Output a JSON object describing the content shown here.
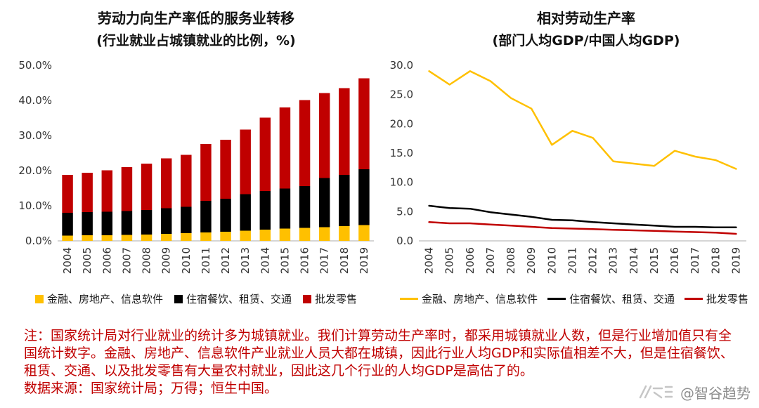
{
  "figure": {
    "background": "#ffffff"
  },
  "colors": {
    "series_finance": "#FFC000",
    "series_accommodation": "#000000",
    "series_wholesale": "#C00000",
    "note_text": "#C00000",
    "tick_text": "#333333",
    "watermark_text": "#8f8f8f"
  },
  "chart_data": [
    {
      "type": "bar",
      "stacked": true,
      "title": "劳动力向生产率低的服务业转移",
      "subtitle": "(行业就业占城镇就业的比例，%)",
      "categories": [
        "2004",
        "2005",
        "2006",
        "2007",
        "2008",
        "2009",
        "2010",
        "2011",
        "2012",
        "2013",
        "2014",
        "2015",
        "2016",
        "2017",
        "2018",
        "2019"
      ],
      "series": [
        {
          "name": "金融、房地产、信息软件",
          "color": "#FFC000",
          "values": [
            1.5,
            1.6,
            1.6,
            1.7,
            1.8,
            2.0,
            2.2,
            2.4,
            2.6,
            2.9,
            3.2,
            3.5,
            3.7,
            3.9,
            4.2,
            4.5
          ]
        },
        {
          "name": "住宿餐饮、租赁、交通",
          "color": "#000000",
          "values": [
            6.5,
            6.6,
            6.7,
            6.8,
            7.0,
            7.3,
            7.5,
            9.0,
            9.4,
            10.4,
            11.0,
            11.4,
            11.9,
            14.0,
            14.6,
            15.9
          ]
        },
        {
          "name": "批发零售",
          "color": "#C00000",
          "values": [
            10.8,
            11.2,
            11.8,
            12.5,
            13.2,
            14.2,
            14.8,
            16.2,
            16.8,
            18.4,
            20.9,
            23.1,
            24.5,
            24.2,
            24.7,
            25.9
          ]
        }
      ],
      "ylim": [
        0,
        50
      ],
      "ytick_step": 10,
      "ytick_format": "percent1",
      "grid": false,
      "legend_position": "bottom"
    },
    {
      "type": "line",
      "title": "相对劳动生产率",
      "subtitle": "(部门人均GDP/中国人均GDP)",
      "categories": [
        "2004",
        "2005",
        "2006",
        "2007",
        "2008",
        "2009",
        "2010",
        "2011",
        "2012",
        "2013",
        "2014",
        "2015",
        "2016",
        "2017",
        "2018",
        "2019"
      ],
      "series": [
        {
          "name": "金融、房地产、信息软件",
          "color": "#FFC000",
          "values": [
            29.0,
            26.7,
            29.0,
            27.3,
            24.4,
            22.6,
            16.4,
            18.8,
            17.6,
            13.6,
            13.2,
            12.8,
            15.4,
            14.4,
            13.8,
            12.3
          ]
        },
        {
          "name": "住宿餐饮、租赁、交通",
          "color": "#000000",
          "values": [
            6.0,
            5.6,
            5.5,
            4.9,
            4.5,
            4.1,
            3.6,
            3.5,
            3.2,
            3.0,
            2.8,
            2.6,
            2.4,
            2.4,
            2.3,
            2.3
          ]
        },
        {
          "name": "批发零售",
          "color": "#C00000",
          "values": [
            3.2,
            3.0,
            3.0,
            2.8,
            2.6,
            2.4,
            2.2,
            2.1,
            2.0,
            1.9,
            1.8,
            1.7,
            1.6,
            1.5,
            1.4,
            1.2
          ]
        }
      ],
      "ylim": [
        0,
        30
      ],
      "ytick_step": 5,
      "ytick_format": "number1",
      "grid": false,
      "legend_position": "bottom"
    }
  ],
  "note": {
    "text": "注：国家统计局对行业就业的统计多为城镇就业。我们计算劳动生产率时，都采用城镇就业人数，但是行业增加值只有全国统计数字。金融、房地产、信息软件产业就业人员大都在城镇，因此行业人均GDP和实际值相差不大，但是住宿餐饮、租赁、交通、以及批发零售有大量农村就业，因此这几个行业的人均GDP是高估了的。",
    "source": "数据来源：国家统计局；万得；恒生中国。"
  },
  "watermark": {
    "handle": "@智谷趋势"
  }
}
